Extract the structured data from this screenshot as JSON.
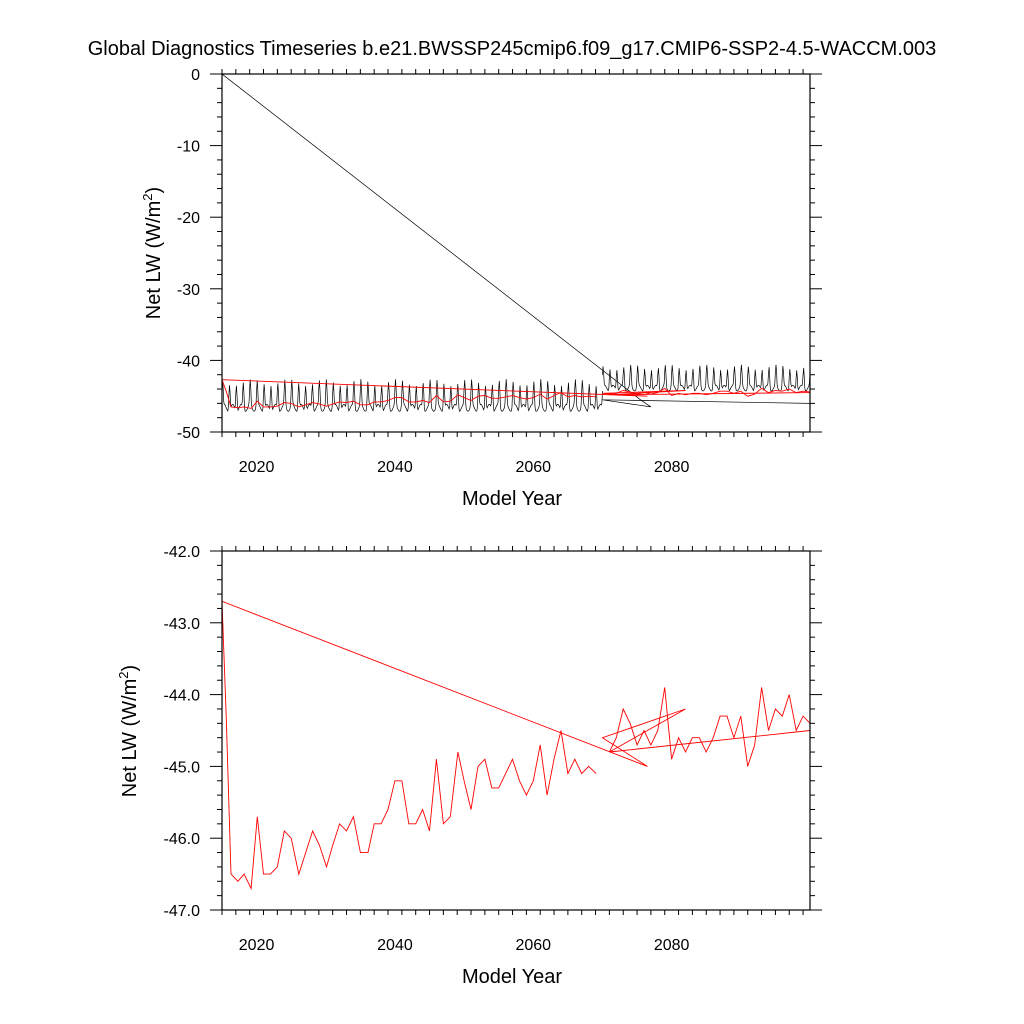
{
  "figure": {
    "title": "Global Diagnostics Timeseries b.e21.BWSSP245cmip6.f09_g17.CMIP6-SSP2-4.5-WACCM.003"
  },
  "colors": {
    "monthly": "#000000",
    "annual": "#ff0000"
  },
  "chart_data": [
    {
      "type": "line",
      "xlabel": "Model Year",
      "ylabel": "Net LW (W/m",
      "ylabel_sup": "2",
      "ylabel_close": ")",
      "xlim": [
        2015,
        2100
      ],
      "ylim": [
        -50,
        0
      ],
      "xticks": [
        2020,
        2040,
        2060,
        2080
      ],
      "yticks": [
        0,
        -10,
        -20,
        -30,
        -40,
        -50
      ],
      "ytick_labels": [
        "0",
        "-10",
        "-20",
        "-30",
        "-40",
        "-50"
      ],
      "series": [
        {
          "style": "monthly",
          "color": "#000000",
          "description_points": [
            [
              2015.0,
              0.0
            ],
            [
              2075.5,
              -45.5
            ],
            [
              2077.0,
              -46.5
            ],
            [
              2070.0,
              -45.5
            ],
            [
              2100.0,
              -46.0
            ]
          ],
          "monthly_segment_1": {
            "start": 2015.0,
            "end": 2070.0,
            "min": -48.0,
            "max": -42.5
          },
          "monthly_segment_2": {
            "start": 2070.0,
            "end": 2100.0,
            "min": -45.0,
            "max": -40.5
          }
        },
        {
          "style": "annual",
          "color": "#ff0000",
          "points": [
            [
              2015.0,
              -42.7
            ],
            [
              2015.6,
              -44.3
            ],
            [
              2016.3,
              -46.5
            ],
            [
              2017.3,
              -46.6
            ],
            [
              2018.2,
              -46.5
            ],
            [
              2019.2,
              -46.7
            ],
            [
              2020.1,
              -45.7
            ],
            [
              2021.0,
              -46.5
            ],
            [
              2022.0,
              -46.5
            ],
            [
              2023.0,
              -46.4
            ],
            [
              2024.0,
              -45.9
            ],
            [
              2025.0,
              -46.0
            ],
            [
              2026.1,
              -46.5
            ],
            [
              2027.1,
              -46.2
            ],
            [
              2028.1,
              -45.9
            ],
            [
              2029.1,
              -46.1
            ],
            [
              2030.1,
              -46.4
            ],
            [
              2031.0,
              -46.1
            ],
            [
              2032.0,
              -45.8
            ],
            [
              2033.0,
              -45.9
            ],
            [
              2034.0,
              -45.7
            ],
            [
              2035.0,
              -46.2
            ],
            [
              2036.1,
              -46.2
            ],
            [
              2037.0,
              -45.8
            ],
            [
              2038.0,
              -45.8
            ],
            [
              2039.0,
              -45.6
            ],
            [
              2040.0,
              -45.2
            ],
            [
              2041.0,
              -45.2
            ],
            [
              2042.0,
              -45.8
            ],
            [
              2043.0,
              -45.8
            ],
            [
              2044.0,
              -45.6
            ],
            [
              2045.0,
              -45.9
            ],
            [
              2046.0,
              -44.9
            ],
            [
              2047.0,
              -45.8
            ],
            [
              2048.0,
              -45.7
            ],
            [
              2049.1,
              -44.8
            ],
            [
              2050.0,
              -45.2
            ],
            [
              2051.0,
              -45.6
            ],
            [
              2052.0,
              -45.0
            ],
            [
              2053.0,
              -44.9
            ],
            [
              2054.0,
              -45.3
            ],
            [
              2055.0,
              -45.3
            ],
            [
              2056.0,
              -45.1
            ],
            [
              2057.0,
              -44.9
            ],
            [
              2058.0,
              -45.2
            ],
            [
              2059.0,
              -45.4
            ],
            [
              2060.0,
              -45.2
            ],
            [
              2061.0,
              -44.7
            ],
            [
              2062.0,
              -45.4
            ],
            [
              2063.0,
              -44.9
            ],
            [
              2064.0,
              -44.5
            ],
            [
              2065.0,
              -45.1
            ],
            [
              2066.0,
              -44.9
            ],
            [
              2067.0,
              -45.1
            ],
            [
              2068.0,
              -45.0
            ],
            [
              2069.1,
              -45.1
            ]
          ],
          "points_2": [
            [
              2015.0,
              -42.7
            ],
            [
              2076.5,
              -45.0
            ],
            [
              2070.0,
              -44.6
            ],
            [
              2082.0,
              -44.2
            ],
            [
              2071.0,
              -44.8
            ],
            [
              2100.0,
              -44.5
            ]
          ],
          "points_3": [
            [
              2071.0,
              -44.8
            ],
            [
              2072.0,
              -44.6
            ],
            [
              2073.0,
              -44.2
            ],
            [
              2074.0,
              -44.4
            ],
            [
              2075.0,
              -44.7
            ],
            [
              2076.0,
              -44.5
            ],
            [
              2077.0,
              -44.7
            ],
            [
              2078.0,
              -44.5
            ],
            [
              2079.0,
              -43.9
            ],
            [
              2080.0,
              -44.9
            ],
            [
              2081.0,
              -44.6
            ],
            [
              2082.0,
              -44.8
            ],
            [
              2083.0,
              -44.6
            ],
            [
              2084.0,
              -44.6
            ],
            [
              2085.0,
              -44.8
            ],
            [
              2086.0,
              -44.6
            ],
            [
              2087.0,
              -44.3
            ],
            [
              2088.0,
              -44.3
            ],
            [
              2089.0,
              -44.6
            ],
            [
              2090.0,
              -44.3
            ],
            [
              2091.0,
              -45.0
            ],
            [
              2092.0,
              -44.7
            ],
            [
              2093.0,
              -43.9
            ],
            [
              2094.0,
              -44.5
            ],
            [
              2095.0,
              -44.2
            ],
            [
              2096.0,
              -44.3
            ],
            [
              2097.0,
              -44.0
            ],
            [
              2098.0,
              -44.5
            ],
            [
              2099.0,
              -44.3
            ],
            [
              2100.0,
              -44.4
            ]
          ]
        }
      ]
    },
    {
      "type": "line",
      "xlabel": "Model Year",
      "ylabel": "Net LW (W/m",
      "ylabel_sup": "2",
      "ylabel_close": ")",
      "xlim": [
        2015,
        2100
      ],
      "ylim": [
        -47.0,
        -42.0
      ],
      "xticks": [
        2020,
        2040,
        2060,
        2080
      ],
      "yticks": [
        -42.0,
        -43.0,
        -44.0,
        -45.0,
        -46.0,
        -47.0
      ],
      "ytick_labels": [
        "-42.0",
        "-43.0",
        "-44.0",
        "-45.0",
        "-46.0",
        "-47.0"
      ],
      "series": [
        {
          "style": "annual",
          "color": "#ff0000",
          "points": [
            [
              2015.0,
              -42.7
            ],
            [
              2015.6,
              -44.3
            ],
            [
              2016.3,
              -46.5
            ],
            [
              2017.3,
              -46.6
            ],
            [
              2018.2,
              -46.5
            ],
            [
              2019.2,
              -46.7
            ],
            [
              2020.1,
              -45.7
            ],
            [
              2021.0,
              -46.5
            ],
            [
              2022.0,
              -46.5
            ],
            [
              2023.0,
              -46.4
            ],
            [
              2024.0,
              -45.9
            ],
            [
              2025.0,
              -46.0
            ],
            [
              2026.1,
              -46.5
            ],
            [
              2027.1,
              -46.2
            ],
            [
              2028.1,
              -45.9
            ],
            [
              2029.1,
              -46.1
            ],
            [
              2030.1,
              -46.4
            ],
            [
              2031.0,
              -46.1
            ],
            [
              2032.0,
              -45.8
            ],
            [
              2033.0,
              -45.9
            ],
            [
              2034.0,
              -45.7
            ],
            [
              2035.0,
              -46.2
            ],
            [
              2036.1,
              -46.2
            ],
            [
              2037.0,
              -45.8
            ],
            [
              2038.0,
              -45.8
            ],
            [
              2039.0,
              -45.6
            ],
            [
              2040.0,
              -45.2
            ],
            [
              2041.0,
              -45.2
            ],
            [
              2042.0,
              -45.8
            ],
            [
              2043.0,
              -45.8
            ],
            [
              2044.0,
              -45.6
            ],
            [
              2045.0,
              -45.9
            ],
            [
              2046.0,
              -44.9
            ],
            [
              2047.0,
              -45.8
            ],
            [
              2048.0,
              -45.7
            ],
            [
              2049.1,
              -44.8
            ],
            [
              2050.0,
              -45.2
            ],
            [
              2051.0,
              -45.6
            ],
            [
              2052.0,
              -45.0
            ],
            [
              2053.0,
              -44.9
            ],
            [
              2054.0,
              -45.3
            ],
            [
              2055.0,
              -45.3
            ],
            [
              2056.0,
              -45.1
            ],
            [
              2057.0,
              -44.9
            ],
            [
              2058.0,
              -45.2
            ],
            [
              2059.0,
              -45.4
            ],
            [
              2060.0,
              -45.2
            ],
            [
              2061.0,
              -44.7
            ],
            [
              2062.0,
              -45.4
            ],
            [
              2063.0,
              -44.9
            ],
            [
              2064.0,
              -44.5
            ],
            [
              2065.0,
              -45.1
            ],
            [
              2066.0,
              -44.9
            ],
            [
              2067.0,
              -45.1
            ],
            [
              2068.0,
              -45.0
            ],
            [
              2069.1,
              -45.1
            ]
          ],
          "points_2": [
            [
              2015.0,
              -42.7
            ],
            [
              2076.5,
              -45.0
            ],
            [
              2070.0,
              -44.6
            ],
            [
              2082.0,
              -44.2
            ],
            [
              2071.0,
              -44.8
            ],
            [
              2100.0,
              -44.5
            ]
          ],
          "points_3": [
            [
              2071.0,
              -44.8
            ],
            [
              2072.0,
              -44.6
            ],
            [
              2073.0,
              -44.2
            ],
            [
              2074.0,
              -44.4
            ],
            [
              2075.0,
              -44.7
            ],
            [
              2076.0,
              -44.5
            ],
            [
              2077.0,
              -44.7
            ],
            [
              2078.0,
              -44.5
            ],
            [
              2079.0,
              -43.9
            ],
            [
              2080.0,
              -44.9
            ],
            [
              2081.0,
              -44.6
            ],
            [
              2082.0,
              -44.8
            ],
            [
              2083.0,
              -44.6
            ],
            [
              2084.0,
              -44.6
            ],
            [
              2085.0,
              -44.8
            ],
            [
              2086.0,
              -44.6
            ],
            [
              2087.0,
              -44.3
            ],
            [
              2088.0,
              -44.3
            ],
            [
              2089.0,
              -44.6
            ],
            [
              2090.0,
              -44.3
            ],
            [
              2091.0,
              -45.0
            ],
            [
              2092.0,
              -44.7
            ],
            [
              2093.0,
              -43.9
            ],
            [
              2094.0,
              -44.5
            ],
            [
              2095.0,
              -44.2
            ],
            [
              2096.0,
              -44.3
            ],
            [
              2097.0,
              -44.0
            ],
            [
              2098.0,
              -44.5
            ],
            [
              2099.0,
              -44.3
            ],
            [
              2100.0,
              -44.4
            ]
          ]
        }
      ]
    }
  ]
}
